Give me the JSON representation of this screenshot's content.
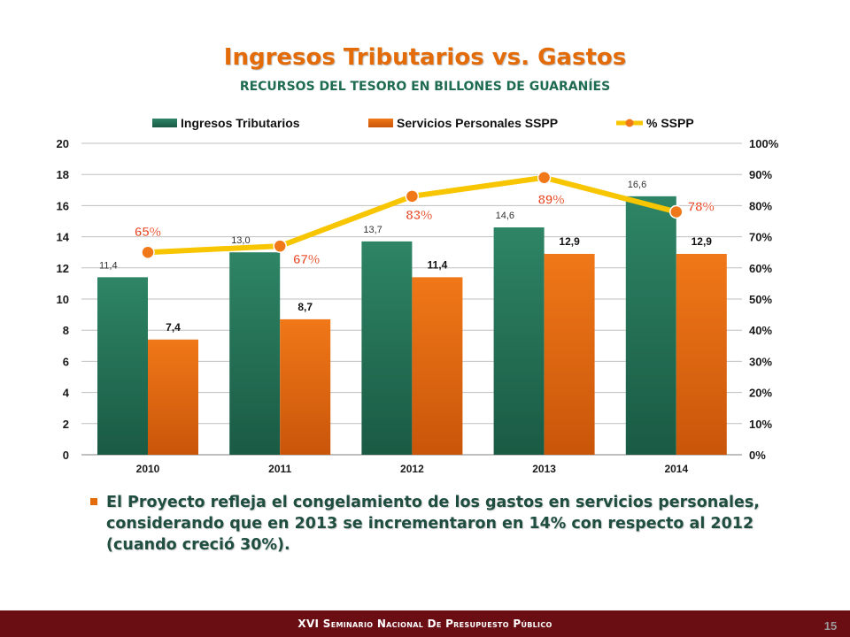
{
  "slide": {
    "title": "Ingresos Tributarios vs. Gastos",
    "subtitle": "RECURSOS DEL TESORO EN BILLONES DE GUARANÍES",
    "bullet": "El Proyecto refleja el congelamiento de los gastos en servicios personales, considerando que en 2013 se incrementaron en 14% con respecto al 2012 (cuando creció 30%).",
    "footer": "XVI Seminario Nacional De Presupuesto Público",
    "page_number": "15"
  },
  "colors": {
    "ingresos": "#2E8566",
    "ingresos_dark": "#1A5A44",
    "sspp": "#F07818",
    "sspp_dark": "#C9550A",
    "line": "#F7C600",
    "marker": "#F07818",
    "pct_label": "#E8401C",
    "title": "#E36C09",
    "footer_bg": "#6B0E14"
  },
  "chart_data": {
    "type": "bar",
    "categories": [
      "2010",
      "2011",
      "2012",
      "2013",
      "2014"
    ],
    "series": [
      {
        "name": "Ingresos Tributarios",
        "values": [
          11.4,
          13.0,
          13.7,
          14.6,
          16.6
        ],
        "labels": [
          "11,4",
          "13,0",
          "13,7",
          "14,6",
          "16,6"
        ]
      },
      {
        "name": "Servicios Personales SSPP",
        "values": [
          7.4,
          8.7,
          11.4,
          12.9,
          12.9
        ],
        "labels": [
          "7,4",
          "8,7",
          "11,4",
          "12,9",
          "12,9"
        ]
      },
      {
        "name": "% SSPP",
        "type": "line",
        "axis": "right",
        "values": [
          65,
          67,
          83,
          89,
          78
        ],
        "labels": [
          "65%",
          "67%",
          "83%",
          "89%",
          "78%"
        ]
      }
    ],
    "y_left": {
      "min": 0,
      "max": 20,
      "ticks": [
        "0",
        "2",
        "4",
        "6",
        "8",
        "10",
        "12",
        "14",
        "16",
        "18",
        "20"
      ]
    },
    "y_right": {
      "min": 0,
      "max": 100,
      "ticks": [
        "0%",
        "10%",
        "20%",
        "30%",
        "40%",
        "50%",
        "60%",
        "70%",
        "80%",
        "90%",
        "100%"
      ]
    },
    "grid": true,
    "legend": "top"
  }
}
